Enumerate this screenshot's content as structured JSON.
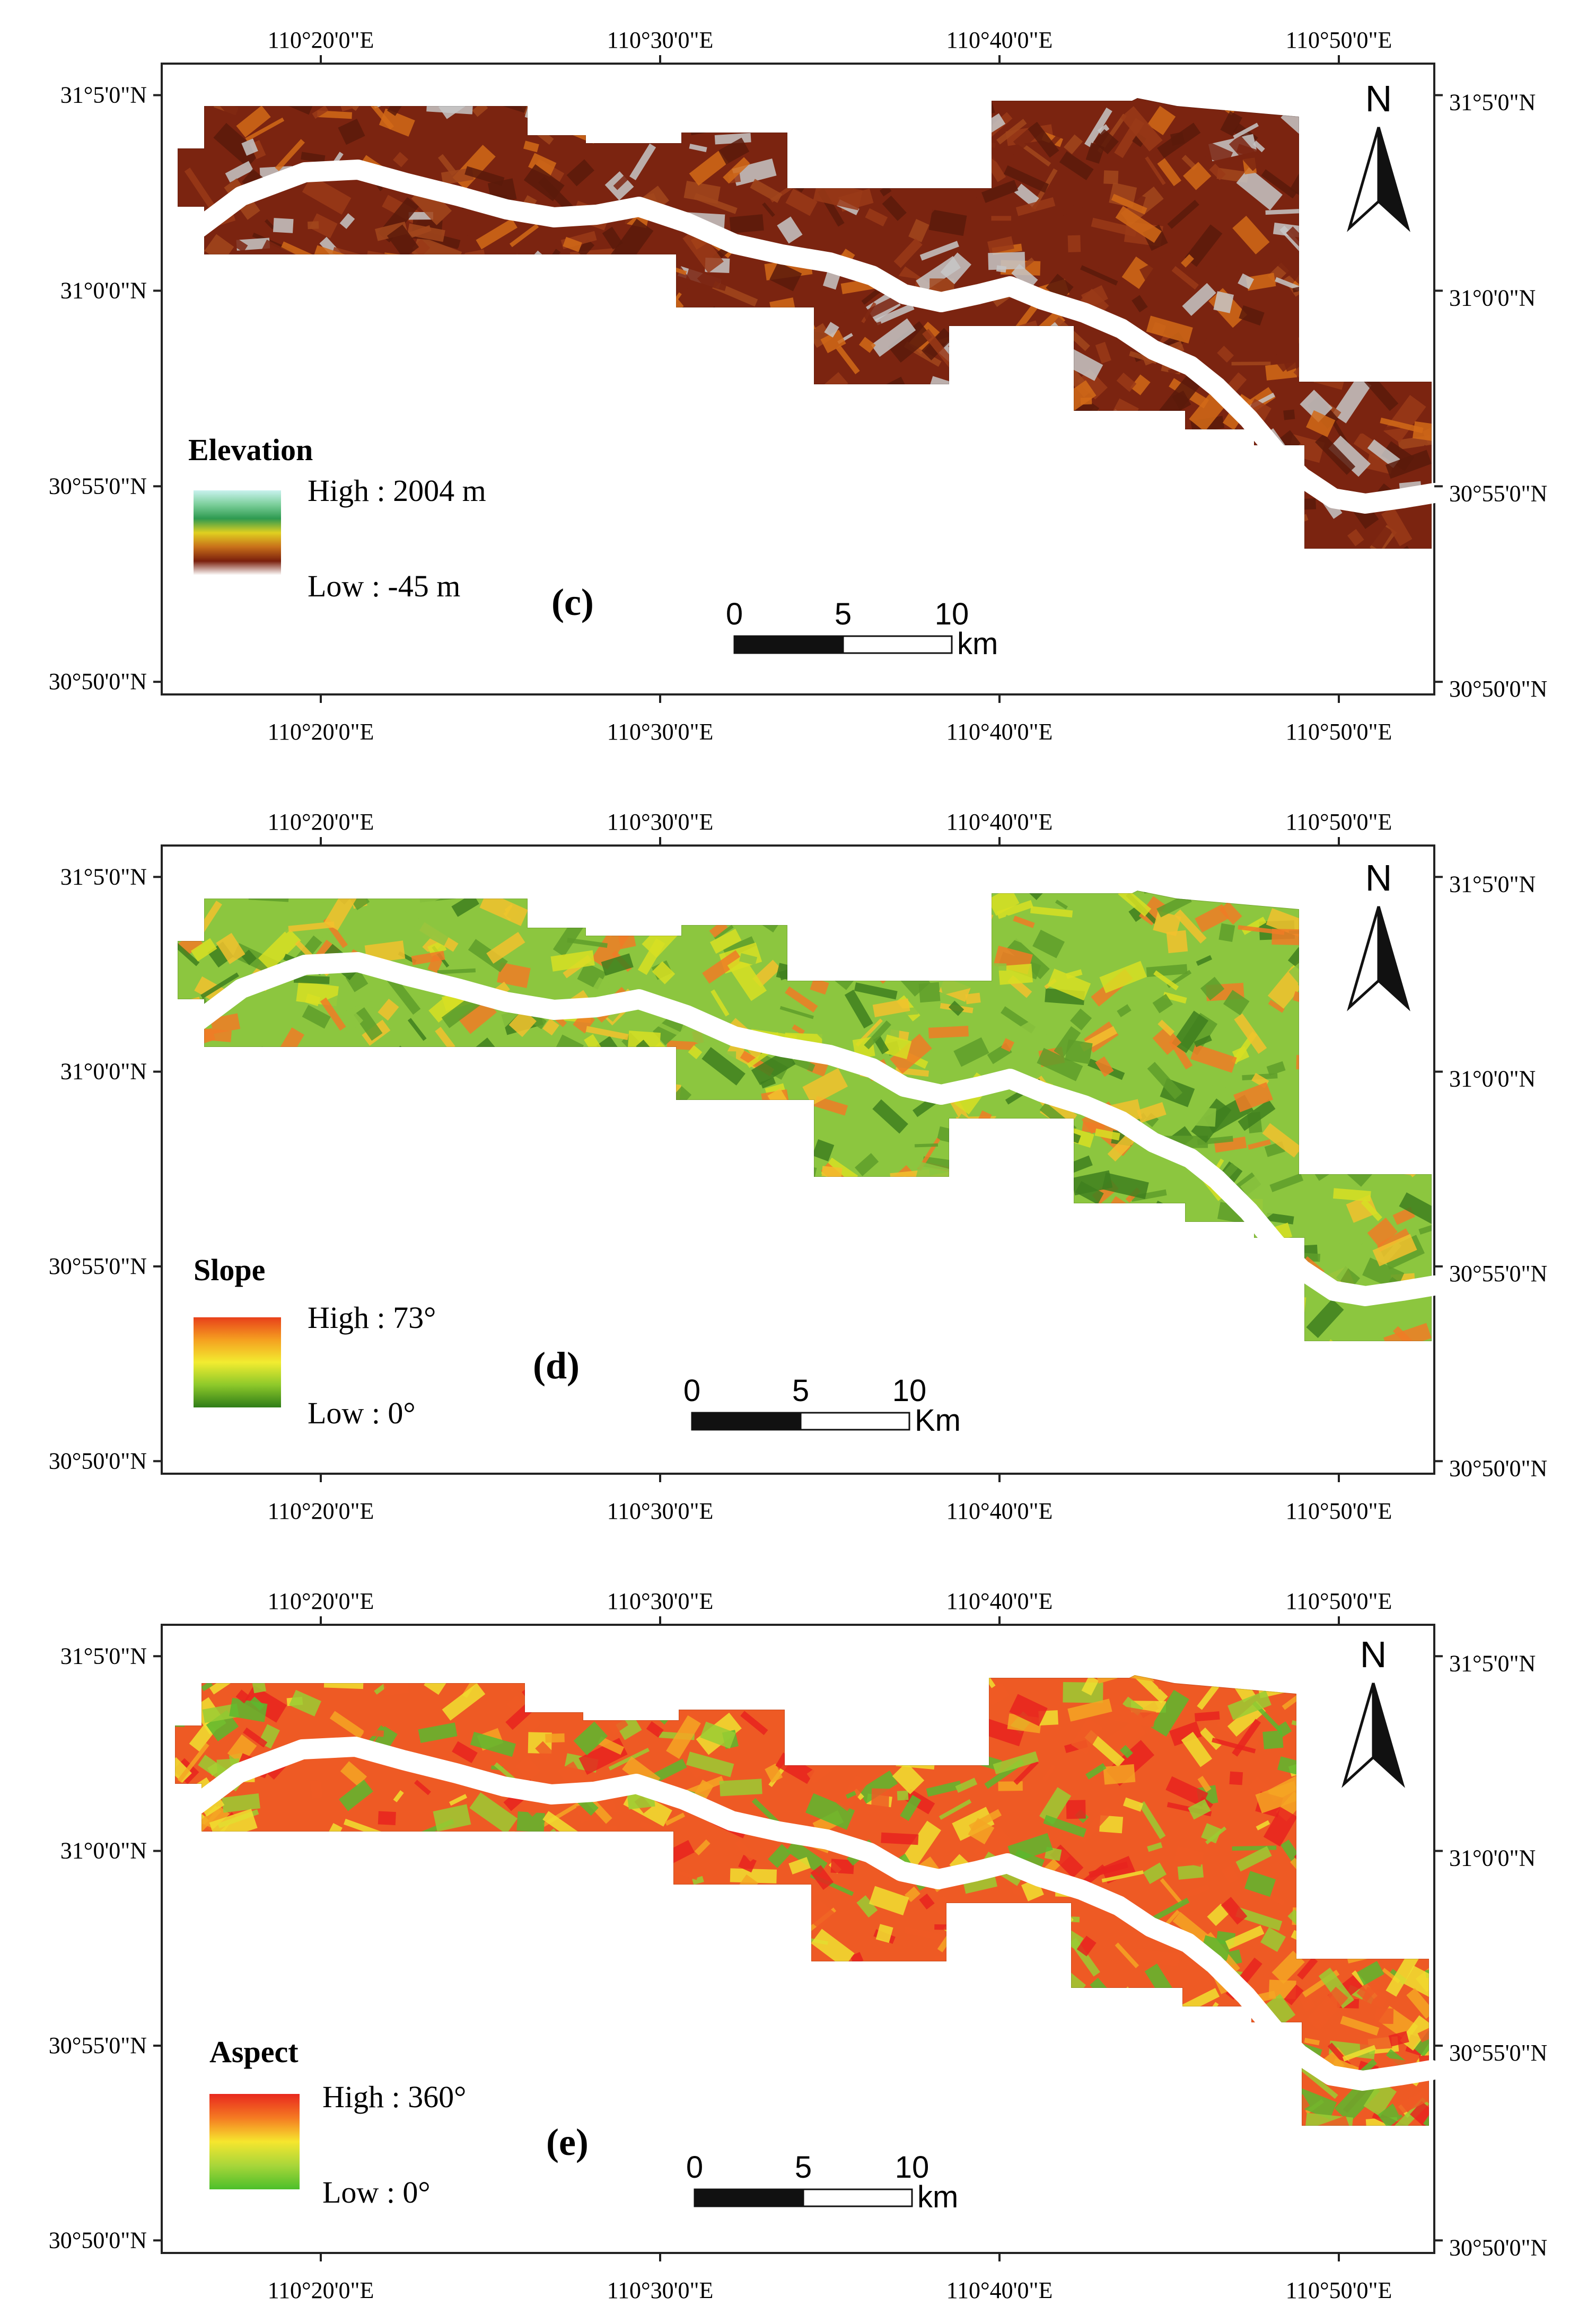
{
  "panels": [
    {
      "id": "c",
      "panel_label": "(c)",
      "legend_title": "Elevation",
      "legend_high": "High : 2004 m",
      "legend_low": "Low : -45 m",
      "scale_labels": [
        "0",
        "5",
        "10"
      ],
      "scale_unit": "km",
      "north": "N",
      "ramp": [
        "#c9f2ef",
        "#7ccf9b",
        "#2e9a50",
        "#e0d020",
        "#c8701a",
        "#7a1f0c",
        "#ffffff"
      ],
      "fill_colors": [
        "#7b2410",
        "#9a3a17",
        "#c7c7c7",
        "#a2471c",
        "#d26a18",
        "#5a1a0a"
      ],
      "lon_top": [
        "110°20'0\"E",
        "110°30'0\"E",
        "110°40'0\"E",
        "110°50'0\"E"
      ],
      "lon_bottom": [
        "110°20'0\"E",
        "110°30'0\"E",
        "110°40'0\"E",
        "110°50'0\"E"
      ],
      "lat_left": [
        "31°5'0\"N",
        "31°0'0\"N",
        "30°55'0\"N",
        "30°50'0\"N"
      ],
      "lat_right": [
        "31°5'0\"N",
        "31°0'0\"N",
        "30°55'0\"N",
        "30°50'0\"N"
      ]
    },
    {
      "id": "d",
      "panel_label": "(d)",
      "legend_title": "Slope",
      "legend_high": "High : 73°",
      "legend_low": "Low : 0°",
      "scale_labels": [
        "0",
        "5",
        "10"
      ],
      "scale_unit": "Km",
      "north": "N",
      "ramp": [
        "#e8401a",
        "#f5a020",
        "#f2ec30",
        "#8ec92a",
        "#2f7d18"
      ],
      "fill_colors": [
        "#8cc63f",
        "#d7df23",
        "#5e9e2a",
        "#f2c12e",
        "#3e7f1f",
        "#f07b26"
      ],
      "lon_top": [
        "110°20'0\"E",
        "110°30'0\"E",
        "110°40'0\"E",
        "110°50'0\"E"
      ],
      "lon_bottom": [
        "110°20'0\"E",
        "110°30'0\"E",
        "110°40'0\"E",
        "110°50'0\"E"
      ],
      "lat_left": [
        "31°5'0\"N",
        "31°0'0\"N",
        "30°55'0\"N",
        "30°50'0\"N"
      ],
      "lat_right": [
        "31°5'0\"N",
        "31°0'0\"N",
        "30°55'0\"N",
        "30°50'0\"N"
      ]
    },
    {
      "id": "e",
      "panel_label": "(e)",
      "legend_title": "Aspect",
      "legend_high": "High : 360°",
      "legend_low": "Low : 0°",
      "scale_labels": [
        "0",
        "5",
        "10"
      ],
      "scale_unit": "km",
      "north": "N",
      "ramp": [
        "#e8281e",
        "#f57a22",
        "#f6e62e",
        "#a8d63a",
        "#4cbf2a"
      ],
      "fill_colors": [
        "#ee5a24",
        "#f5a623",
        "#9acd32",
        "#e8231e",
        "#f0e130",
        "#5cb82e"
      ],
      "lon_top": [
        "110°20'0\"E",
        "110°30'0\"E",
        "110°40'0\"E",
        "110°50'0\"E"
      ],
      "lon_bottom": [
        "110°20'0\"E",
        "110°30'0\"E",
        "110°40'0\"E",
        "110°50'0\"E"
      ],
      "lat_left": [
        "31°5'0\"N",
        "31°0'0\"N",
        "30°55'0\"N",
        "30°50'0\"N"
      ],
      "lat_right": [
        "31°5'0\"N",
        "31°0'0\"N",
        "30°55'0\"N",
        "30°50'0\"N"
      ]
    }
  ]
}
